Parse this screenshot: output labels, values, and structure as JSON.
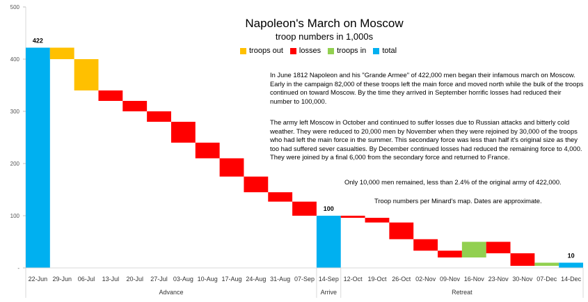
{
  "chart_data": {
    "type": "waterfall",
    "title": "Napoleon's March on Moscow",
    "subtitle": "troop numbers in 1,000s",
    "ylim": [
      0,
      500
    ],
    "yticks": [
      0,
      100,
      200,
      300,
      400,
      500
    ],
    "legend": [
      {
        "name": "troops out",
        "color": "#FFC000"
      },
      {
        "name": "losses",
        "color": "#FF0000"
      },
      {
        "name": "troops in",
        "color": "#92D050"
      },
      {
        "name": "total",
        "color": "#00B0F0"
      }
    ],
    "categories": [
      "22-Jun",
      "29-Jun",
      "06-Jul",
      "13-Jul",
      "20-Jul",
      "27-Jul",
      "03-Aug",
      "10-Aug",
      "17-Aug",
      "24-Aug",
      "31-Aug",
      "07-Sep",
      "14-Sep",
      "12-Oct",
      "19-Oct",
      "26-Oct",
      "02-Nov",
      "09-Nov",
      "16-Nov",
      "23-Nov",
      "30-Nov",
      "07-Dec",
      "14-Dec"
    ],
    "bars": [
      {
        "kind": "total",
        "start": 0,
        "end": 422
      },
      {
        "kind": "troops out",
        "start": 422,
        "end": 400
      },
      {
        "kind": "troops out",
        "start": 400,
        "end": 340
      },
      {
        "kind": "losses",
        "start": 340,
        "end": 320
      },
      {
        "kind": "losses",
        "start": 320,
        "end": 300
      },
      {
        "kind": "losses",
        "start": 300,
        "end": 280
      },
      {
        "kind": "losses",
        "start": 280,
        "end": 240
      },
      {
        "kind": "losses",
        "start": 240,
        "end": 210
      },
      {
        "kind": "losses",
        "start": 210,
        "end": 175
      },
      {
        "kind": "losses",
        "start": 175,
        "end": 145
      },
      {
        "kind": "losses",
        "start": 145,
        "end": 127
      },
      {
        "kind": "losses",
        "start": 127,
        "end": 100
      },
      {
        "kind": "total",
        "start": 0,
        "end": 100
      },
      {
        "kind": "losses",
        "start": 100,
        "end": 96
      },
      {
        "kind": "losses",
        "start": 96,
        "end": 87
      },
      {
        "kind": "losses",
        "start": 87,
        "end": 55
      },
      {
        "kind": "losses",
        "start": 55,
        "end": 33
      },
      {
        "kind": "losses",
        "start": 33,
        "end": 20
      },
      {
        "kind": "troops in",
        "start": 20,
        "end": 50
      },
      {
        "kind": "losses",
        "start": 50,
        "end": 28
      },
      {
        "kind": "losses",
        "start": 28,
        "end": 4
      },
      {
        "kind": "troops in",
        "start": 4,
        "end": 10
      },
      {
        "kind": "total",
        "start": 0,
        "end": 10
      }
    ],
    "data_labels": [
      {
        "index": 0,
        "text": "422"
      },
      {
        "index": 12,
        "text": "100"
      },
      {
        "index": 22,
        "text": "10"
      }
    ],
    "groups": [
      {
        "name": "Advance",
        "from": 0,
        "to": 11
      },
      {
        "name": "Arrive",
        "from": 12,
        "to": 12
      },
      {
        "name": "Retreat",
        "from": 13,
        "to": 22
      }
    ],
    "notes": [
      "In June 1812 Napoleon and his \"Grande Armee\" of 422,000 men began their infamous march on Moscow. Early in the campaign 82,000 of these troops left the main force and moved north while the bulk of the troops continued on toward Moscow. By the time they arrived in September horrific losses had reduced their number to 100,000.",
      "The army left Moscow in October and continued to suffer losses due to Russian attacks and bitterly cold weather. They were reduced to 20,000 men by November when they were rejoined by 30,000 of the troops who had left the main force in the summer. This secondary force was less than half it's original size as they too had suffered sever casualties. By December continued losses had reduced the remaining force to 4,000. They were joined by a final 6,000 from the secondary force and returned to France.",
      "Only 10,000 men remained, less than 2.4% of the original army of 422,000.",
      "Troop numbers per Minard's map. Dates are approximate."
    ]
  }
}
